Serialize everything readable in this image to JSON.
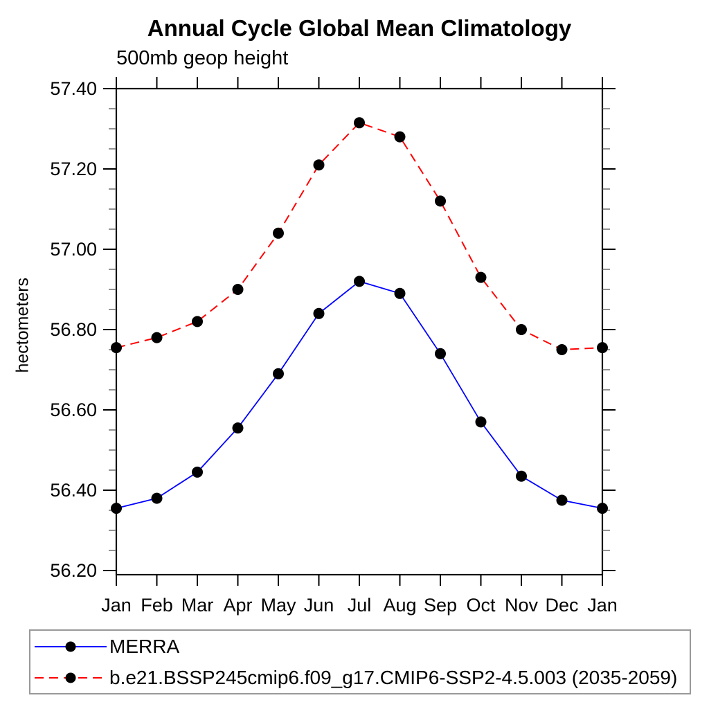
{
  "page": {
    "background": "#ffffff"
  },
  "chart_data": {
    "type": "line",
    "title": "Annual Cycle Global Mean Climatology",
    "subtitle": "500mb geop height",
    "ylabel": "hectometers",
    "xlabel": "",
    "categories": [
      "Jan",
      "Feb",
      "Mar",
      "Apr",
      "May",
      "Jun",
      "Jul",
      "Aug",
      "Sep",
      "Oct",
      "Nov",
      "Dec",
      "Jan"
    ],
    "series": [
      {
        "name": "MERRA",
        "color": "#0000ff",
        "line_style": "solid",
        "marker": "filled-circle",
        "marker_color": "#000000",
        "values": [
          56.355,
          56.38,
          56.445,
          56.555,
          56.69,
          56.84,
          56.92,
          56.89,
          56.74,
          56.57,
          56.435,
          56.375,
          56.355
        ]
      },
      {
        "name": "b.e21.BSSP245cmip6.f09_g17.CMIP6-SSP2-4.5.003 (2035-2059)",
        "color": "#ff0000",
        "line_style": "dashed",
        "marker": "filled-circle",
        "marker_color": "#000000",
        "values": [
          56.755,
          56.78,
          56.82,
          56.9,
          57.04,
          57.21,
          57.315,
          57.28,
          57.12,
          56.93,
          56.8,
          56.75,
          56.755
        ]
      }
    ],
    "ylim": [
      56.19,
      57.4
    ],
    "yticks_major": {
      "start": 56.2,
      "end": 57.4,
      "step": 0.2,
      "format_decimals": 2
    },
    "yticks_minor_step": 0.05,
    "grid": false,
    "legend_position": "bottom-left-box",
    "axis_color": "#000000",
    "minor_tick_color": "#666666"
  }
}
